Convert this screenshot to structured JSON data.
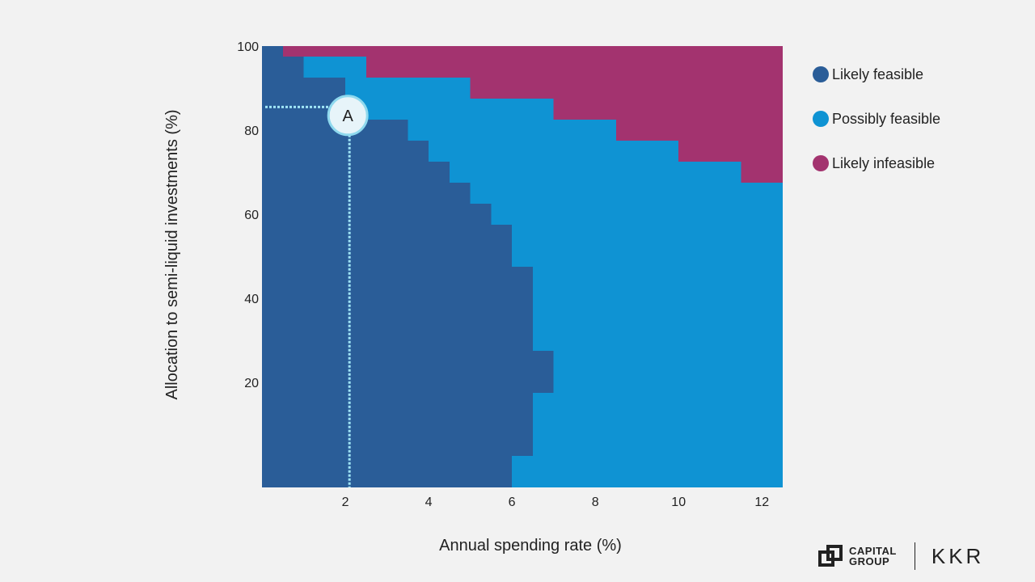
{
  "chart_data": {
    "type": "heatmap",
    "xlabel": "Annual spending rate (%)",
    "ylabel": "Allocation to semi-liquid investments (%)",
    "xlim": [
      0,
      12.5
    ],
    "ylim": [
      -5,
      100
    ],
    "x_ticks": [
      2,
      4,
      6,
      8,
      10,
      12
    ],
    "y_ticks": [
      20,
      40,
      60,
      80,
      100
    ],
    "colors": {
      "likely_feasible": "#2a5d98",
      "possibly_feasible": "#0f93d3",
      "likely_infeasible": "#a3336f"
    },
    "series": [
      {
        "name": "Likely feasible",
        "description_key": "likely_feasible",
        "boundary": [
          {
            "y_from": 97.5,
            "y_to": 102.5,
            "x_to": 0.5
          },
          {
            "y_from": 92.5,
            "y_to": 97.5,
            "x_to": 1.0
          },
          {
            "y_from": 87.5,
            "y_to": 92.5,
            "x_to": 2.0
          },
          {
            "y_from": 82.5,
            "y_to": 87.5,
            "x_to": 2.0
          },
          {
            "y_from": 77.5,
            "y_to": 82.5,
            "x_to": 3.5
          },
          {
            "y_from": 72.5,
            "y_to": 77.5,
            "x_to": 4.0
          },
          {
            "y_from": 67.5,
            "y_to": 72.5,
            "x_to": 4.5
          },
          {
            "y_from": 62.5,
            "y_to": 67.5,
            "x_to": 5.0
          },
          {
            "y_from": 57.5,
            "y_to": 62.5,
            "x_to": 5.5
          },
          {
            "y_from": 47.5,
            "y_to": 57.5,
            "x_to": 6.0
          },
          {
            "y_from": 27.5,
            "y_to": 47.5,
            "x_to": 6.5
          },
          {
            "y_from": 17.5,
            "y_to": 27.5,
            "x_to": 7.0
          },
          {
            "y_from": 2.5,
            "y_to": 17.5,
            "x_to": 6.5
          },
          {
            "y_from": -5.0,
            "y_to": 2.5,
            "x_to": 6.0
          }
        ]
      },
      {
        "name": "Possibly feasible",
        "description_key": "possibly_feasible",
        "boundary": [
          {
            "y_from": 97.5,
            "y_to": 102.5,
            "x_to": 0.5
          },
          {
            "y_from": 92.5,
            "y_to": 97.5,
            "x_to": 2.5
          },
          {
            "y_from": 87.5,
            "y_to": 92.5,
            "x_to": 5.0
          },
          {
            "y_from": 82.5,
            "y_to": 87.5,
            "x_to": 7.0
          },
          {
            "y_from": 77.5,
            "y_to": 82.5,
            "x_to": 8.5
          },
          {
            "y_from": 72.5,
            "y_to": 77.5,
            "x_to": 10.0
          },
          {
            "y_from": 67.5,
            "y_to": 72.5,
            "x_to": 11.5
          },
          {
            "y_from": -5.0,
            "y_to": 67.5,
            "x_to": 12.5
          }
        ]
      },
      {
        "name": "Likely infeasible",
        "description_key": "likely_infeasible"
      }
    ],
    "annotation": {
      "label": "A",
      "x": 2.1,
      "y": 83.5,
      "ref_y": 85.5
    }
  },
  "legend": [
    {
      "label": "Likely feasible",
      "color": "#2a5d98"
    },
    {
      "label": "Possibly feasible",
      "color": "#0f93d3"
    },
    {
      "label": "Likely infeasible",
      "color": "#a3336f"
    }
  ],
  "logos": {
    "capital_group_line1": "CAPITAL",
    "capital_group_line2": "GROUP",
    "kkr": "KKR"
  },
  "icons": {
    "capital_group": "capital-group-logo-icon"
  }
}
